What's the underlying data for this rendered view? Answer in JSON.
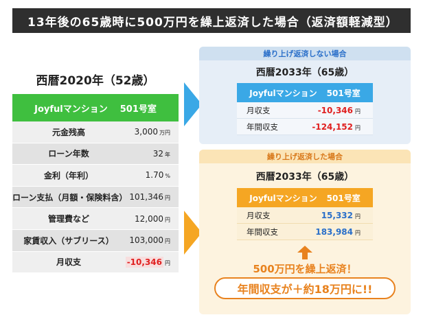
{
  "title": "13年後の65歳時に500万円を繰上返済した場合（返済額軽減型）",
  "left": {
    "year": "西暦2020年（52歳）",
    "property": "Joyfulマンション",
    "room": "501号室",
    "rows": [
      {
        "label": "元金残高",
        "value": "3,000",
        "unit": "万円"
      },
      {
        "label": "ローン年数",
        "value": "32",
        "unit": "年"
      },
      {
        "label": "金利（年利）",
        "value": "1.70",
        "unit": "%"
      },
      {
        "label": "ローン支払（月額・保険料含）",
        "value": "101,346",
        "unit": "円"
      },
      {
        "label": "管理費など",
        "value": "12,000",
        "unit": "円"
      },
      {
        "label": "家賃収入（サブリース）",
        "value": "103,000",
        "unit": "円"
      },
      {
        "label": "月収支",
        "value": "-10,346",
        "unit": "円"
      }
    ]
  },
  "no_repay": {
    "caption": "繰り上げ返済しない場合",
    "year": "西暦2033年（65歳）",
    "property": "Joyfulマンション",
    "room": "501号室",
    "rows": [
      {
        "label": "月収支",
        "value": "-10,346",
        "unit": "円"
      },
      {
        "label": "年間収支",
        "value": "-124,152",
        "unit": "円"
      }
    ]
  },
  "repay": {
    "caption": "繰り上げ返済した場合",
    "year": "西暦2033年（65歳）",
    "property": "Joyfulマンション",
    "room": "501号室",
    "rows": [
      {
        "label": "月収支",
        "value": "15,332",
        "unit": "円"
      },
      {
        "label": "年間収支",
        "value": "183,984",
        "unit": "円"
      }
    ],
    "action_text": "500万円を繰上返済！",
    "result_text": "年間収支が＋約18万円に!!"
  },
  "colors": {
    "title_bg": "#2f2f2f",
    "green": "#3fbf3f",
    "blue": "#3aa8e6",
    "orange": "#f5a623",
    "negative": "#e02020",
    "positive": "#2a6fc9"
  },
  "icons": {
    "arrow_top": "triangle-right-blue",
    "arrow_bottom": "triangle-right-orange",
    "arrow_up": "arrow-up-orange"
  }
}
